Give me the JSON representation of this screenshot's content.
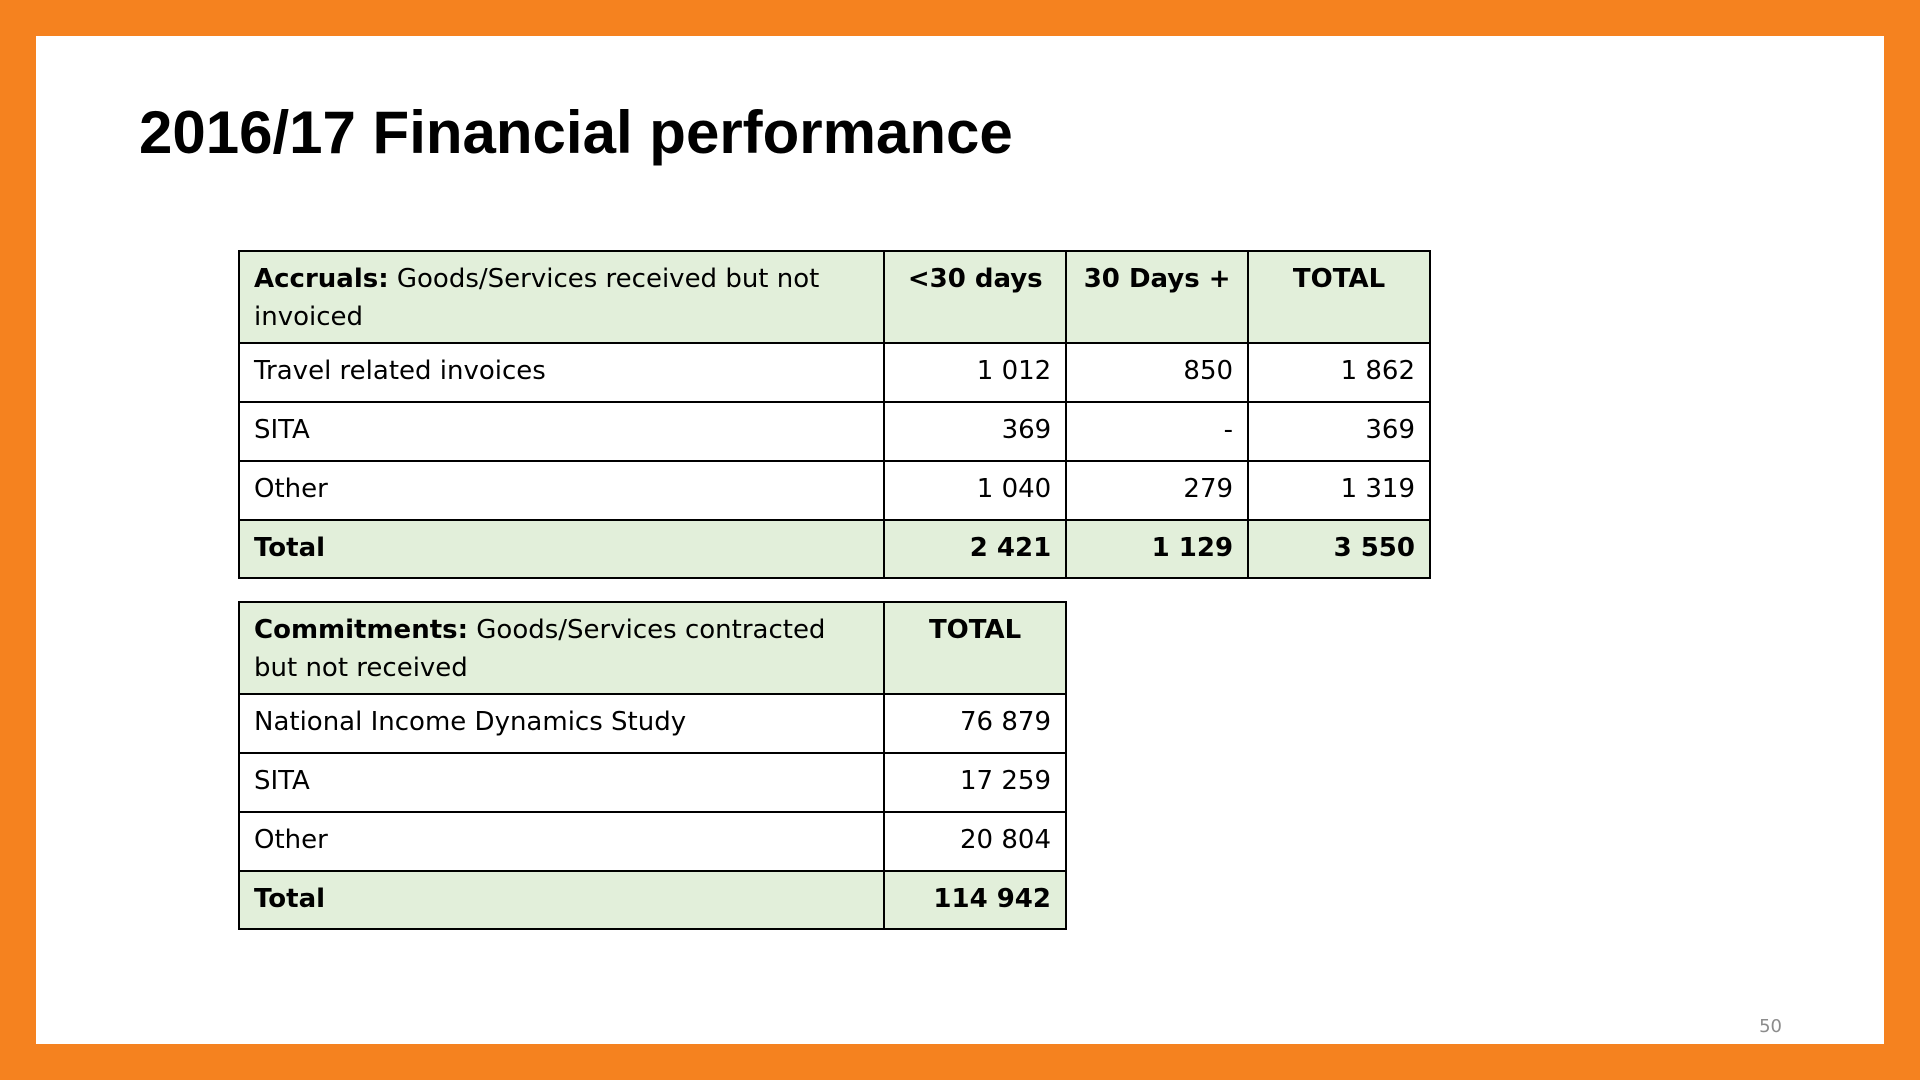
{
  "slide": {
    "title": "2016/17 Financial performance",
    "page_number": "50",
    "colors": {
      "border": "#F5821F",
      "header_fill": "#E2EFDA"
    }
  },
  "accruals": {
    "header": {
      "label_bold": "Accruals:",
      "label_rest": " Goods/Services received but not invoiced",
      "columns": [
        "<30 days",
        "30 Days +",
        "TOTAL"
      ]
    },
    "rows": [
      {
        "label": "Travel related invoices",
        "values": [
          "1 012",
          "850",
          "1 862"
        ]
      },
      {
        "label": "SITA",
        "values": [
          "369",
          "-",
          "369"
        ]
      },
      {
        "label": "Other",
        "values": [
          "1 040",
          "279",
          "1 319"
        ]
      }
    ],
    "total": {
      "label": "Total",
      "values": [
        "2 421",
        "1 129",
        "3 550"
      ]
    }
  },
  "commitments": {
    "header": {
      "label_bold": "Commitments:",
      "label_rest": " Goods/Services contracted but not received",
      "columns": [
        "TOTAL"
      ]
    },
    "rows": [
      {
        "label": "National Income Dynamics Study",
        "values": [
          "76 879"
        ]
      },
      {
        "label": "SITA",
        "values": [
          "17 259"
        ]
      },
      {
        "label": "Other",
        "values": [
          "20 804"
        ]
      }
    ],
    "total": {
      "label": "Total",
      "values": [
        "114 942"
      ]
    }
  }
}
